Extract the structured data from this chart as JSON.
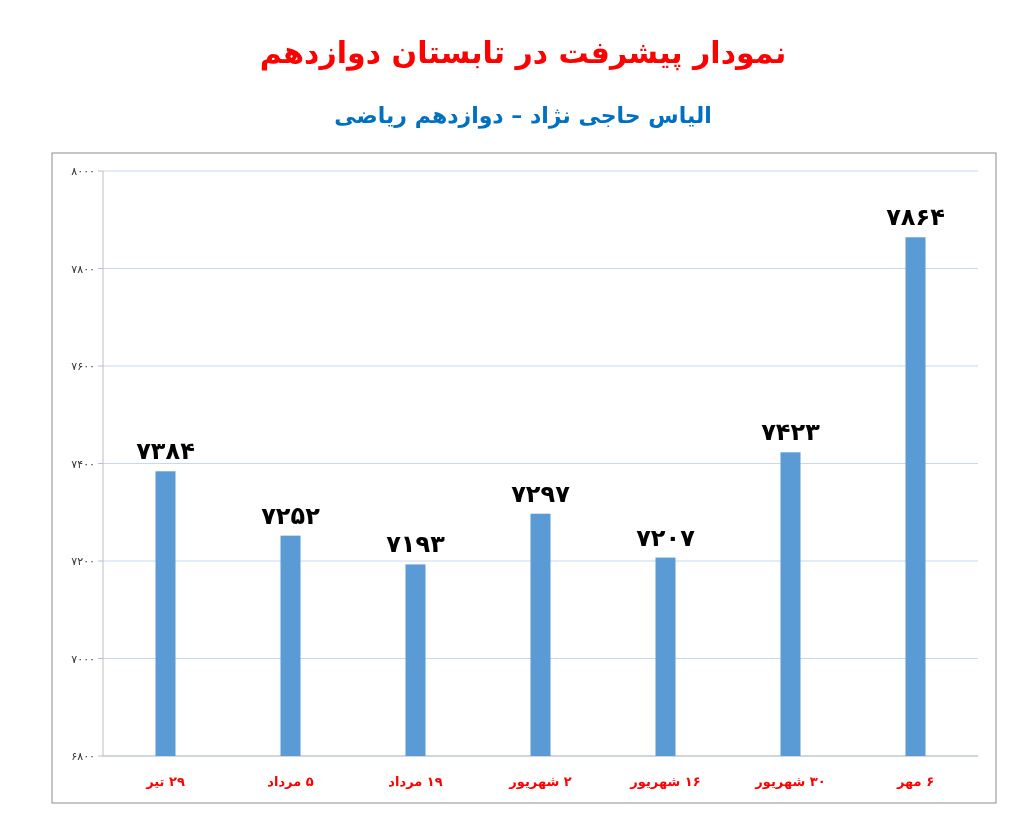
{
  "chart_data": {
    "type": "bar",
    "title": "نمودار پیشرفت در تابستان دوازدهم",
    "subtitle": "الیاس حاجی نژاد – دوازدهم ریاضی",
    "categories": [
      "۲۹ تیر",
      "۵ مرداد",
      "۱۹ مرداد",
      "۲ شهریور",
      "۱۶ شهریور",
      "۳۰ شهریور",
      "۶ مهر"
    ],
    "values": [
      7384,
      7252,
      7193,
      7297,
      7207,
      7423,
      7864
    ],
    "value_labels": [
      "۷۳۸۴",
      "۷۲۵۲",
      "۷۱۹۳",
      "۷۲۹۷",
      "۷۲۰۷",
      "۷۴۲۳",
      "۷۸۶۴"
    ],
    "color": "#5b9bd5",
    "ylim": [
      6800,
      8000
    ],
    "yticks": [
      {
        "value": 6800,
        "label": "۶۸۰۰"
      },
      {
        "value": 7000,
        "label": "۷۰۰۰"
      },
      {
        "value": 7200,
        "label": "۷۲۰۰"
      },
      {
        "value": 7400,
        "label": "۷۴۰۰"
      },
      {
        "value": 7600,
        "label": "۷۶۰۰"
      },
      {
        "value": 7800,
        "label": "۷۸۰۰"
      },
      {
        "value": 8000,
        "label": "۸۰۰۰"
      }
    ],
    "grid": "y"
  }
}
